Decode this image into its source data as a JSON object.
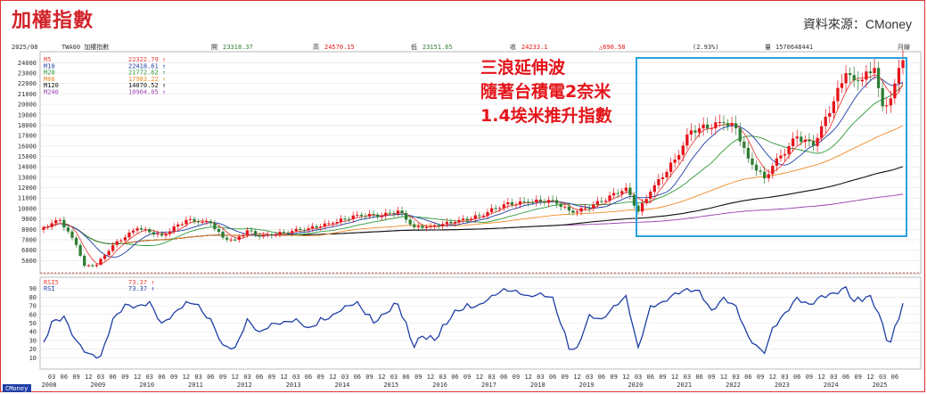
{
  "title": "加權指數",
  "source": "資料來源：CMoney",
  "header": {
    "date": "2025/08",
    "code": "TWA00 加權指數",
    "open_label": "開",
    "open": "23318.37",
    "high_label": "高",
    "high": "24570.15",
    "low_label": "低",
    "low": "23151.65",
    "close_label": "收",
    "close": "24233.1",
    "change": "△690.58",
    "pct": "(2.93%)",
    "vol_label": "量",
    "vol": "1570648441",
    "period": "月線"
  },
  "legend": [
    {
      "name": "M5",
      "value": "22322.79 ↑",
      "color": "#e8413a"
    },
    {
      "name": "M10",
      "value": "22418.61 ↑",
      "color": "#1f3fa6"
    },
    {
      "name": "M20",
      "value": "21772.62 ↑",
      "color": "#2e9a3a"
    },
    {
      "name": "M60",
      "value": "17982.22 ↑",
      "color": "#ef8a25"
    },
    {
      "name": "M120",
      "value": "14070.52 ↑",
      "color": "#111111"
    },
    {
      "name": "M240",
      "value": "10904.05 ↑",
      "color": "#9a3fb0"
    }
  ],
  "rsi_legend": [
    {
      "name": "RSI5",
      "value": "73.37 ↑",
      "color": "#e8413a"
    },
    {
      "name": "RSI",
      "value": "73.37 ↑",
      "color": "#1f3fa6"
    }
  ],
  "annotation": [
    "三浪延伸波",
    "隨著台積電2奈米",
    "1.4埃米推升指數"
  ],
  "watermark": "CMoney",
  "colors": {
    "up": "#e4141a",
    "down": "#2e7d32",
    "highlight_box": "#29a3e0",
    "frame": "#d33333"
  },
  "chart_data": [
    {
      "type": "candlestick",
      "title": "加權指數",
      "period": "monthly",
      "ylim": [
        4000,
        24800
      ],
      "yticks": [
        5000,
        6000,
        7000,
        8000,
        9000,
        10000,
        11000,
        12000,
        13000,
        14000,
        15000,
        16000,
        17000,
        18000,
        19000,
        20000,
        21000,
        22000,
        23000,
        24000
      ],
      "x_years": [
        "2008",
        "2009",
        "2010",
        "2011",
        "2012",
        "2013",
        "2014",
        "2015",
        "2016",
        "2017",
        "2018",
        "2019",
        "2020",
        "2021",
        "2022",
        "2023",
        "2024",
        "2025"
      ],
      "x_months": [
        "03",
        "06",
        "09",
        "12"
      ],
      "close_waypoints": [
        [
          "2008-01",
          8200
        ],
        [
          "2008-05",
          8900
        ],
        [
          "2008-09",
          6500
        ],
        [
          "2008-11",
          4500
        ],
        [
          "2009-02",
          4600
        ],
        [
          "2009-06",
          6500
        ],
        [
          "2009-12",
          8100
        ],
        [
          "2010-06",
          7400
        ],
        [
          "2010-12",
          8900
        ],
        [
          "2011-03",
          8700
        ],
        [
          "2011-06",
          8600
        ],
        [
          "2011-09",
          7200
        ],
        [
          "2011-12",
          7000
        ],
        [
          "2012-03",
          7900
        ],
        [
          "2012-06",
          7300
        ],
        [
          "2012-12",
          7700
        ],
        [
          "2013-06",
          8100
        ],
        [
          "2013-12",
          8600
        ],
        [
          "2014-06",
          9400
        ],
        [
          "2014-12",
          9300
        ],
        [
          "2015-04",
          9800
        ],
        [
          "2015-08",
          8200
        ],
        [
          "2015-12",
          8300
        ],
        [
          "2016-06",
          8700
        ],
        [
          "2016-12",
          9300
        ],
        [
          "2017-06",
          10400
        ],
        [
          "2017-12",
          10600
        ],
        [
          "2018-06",
          10800
        ],
        [
          "2018-10",
          9800
        ],
        [
          "2018-12",
          9700
        ],
        [
          "2019-06",
          10700
        ],
        [
          "2019-12",
          12000
        ],
        [
          "2020-03",
          9700
        ],
        [
          "2020-06",
          11600
        ],
        [
          "2020-12",
          14700
        ],
        [
          "2021-04",
          17500
        ],
        [
          "2021-06",
          17700
        ],
        [
          "2021-12",
          18200
        ],
        [
          "2022-03",
          17700
        ],
        [
          "2022-06",
          14800
        ],
        [
          "2022-10",
          12900
        ],
        [
          "2022-12",
          14100
        ],
        [
          "2023-06",
          16900
        ],
        [
          "2023-10",
          16000
        ],
        [
          "2023-12",
          17900
        ],
        [
          "2024-03",
          20300
        ],
        [
          "2024-06",
          23000
        ],
        [
          "2024-08",
          22300
        ],
        [
          "2024-12",
          23000
        ],
        [
          "2025-01",
          23500
        ],
        [
          "2025-03",
          19800
        ],
        [
          "2025-04",
          19900
        ],
        [
          "2025-06",
          22000
        ],
        [
          "2025-08",
          24233
        ]
      ],
      "moving_averages": {
        "M5": [
          22322.79
        ],
        "M10": [
          22418.61
        ],
        "M20": [
          21772.62
        ],
        "M60": [
          17982.22
        ],
        "M120": [
          14070.52
        ],
        "M240": [
          10904.05
        ]
      }
    },
    {
      "type": "line",
      "title": "RSI",
      "ylim": [
        0,
        100
      ],
      "yticks": [
        10,
        20,
        30,
        40,
        50,
        60,
        70,
        80,
        90
      ],
      "series": [
        {
          "name": "RSI",
          "last": 73.37
        }
      ],
      "waypoints": [
        [
          "2008-01",
          28
        ],
        [
          "2008-03",
          52
        ],
        [
          "2008-06",
          58
        ],
        [
          "2008-09",
          30
        ],
        [
          "2008-12",
          15
        ],
        [
          "2009-03",
          12
        ],
        [
          "2009-06",
          55
        ],
        [
          "2009-09",
          72
        ],
        [
          "2009-12",
          70
        ],
        [
          "2010-03",
          75
        ],
        [
          "2010-06",
          50
        ],
        [
          "2010-09",
          62
        ],
        [
          "2010-12",
          75
        ],
        [
          "2011-02",
          72
        ],
        [
          "2011-06",
          55
        ],
        [
          "2011-09",
          25
        ],
        [
          "2011-12",
          22
        ],
        [
          "2012-03",
          55
        ],
        [
          "2012-06",
          40
        ],
        [
          "2012-09",
          50
        ],
        [
          "2012-12",
          52
        ],
        [
          "2013-03",
          55
        ],
        [
          "2013-06",
          45
        ],
        [
          "2013-12",
          60
        ],
        [
          "2014-03",
          70
        ],
        [
          "2014-06",
          75
        ],
        [
          "2014-10",
          50
        ],
        [
          "2014-12",
          60
        ],
        [
          "2015-04",
          72
        ],
        [
          "2015-08",
          22
        ],
        [
          "2015-10",
          35
        ],
        [
          "2016-01",
          30
        ],
        [
          "2016-06",
          65
        ],
        [
          "2016-12",
          72
        ],
        [
          "2017-03",
          82
        ],
        [
          "2017-06",
          90
        ],
        [
          "2017-09",
          88
        ],
        [
          "2017-12",
          82
        ],
        [
          "2018-03",
          85
        ],
        [
          "2018-06",
          80
        ],
        [
          "2018-10",
          20
        ],
        [
          "2018-12",
          22
        ],
        [
          "2019-03",
          60
        ],
        [
          "2019-06",
          55
        ],
        [
          "2019-09",
          70
        ],
        [
          "2019-12",
          82
        ],
        [
          "2020-03",
          22
        ],
        [
          "2020-06",
          70
        ],
        [
          "2020-09",
          75
        ],
        [
          "2020-12",
          85
        ],
        [
          "2021-03",
          90
        ],
        [
          "2021-06",
          88
        ],
        [
          "2021-09",
          65
        ],
        [
          "2021-12",
          80
        ],
        [
          "2022-03",
          70
        ],
        [
          "2022-06",
          35
        ],
        [
          "2022-09",
          20
        ],
        [
          "2022-10",
          15
        ],
        [
          "2022-12",
          45
        ],
        [
          "2023-03",
          62
        ],
        [
          "2023-06",
          80
        ],
        [
          "2023-09",
          72
        ],
        [
          "2023-12",
          82
        ],
        [
          "2024-03",
          85
        ],
        [
          "2024-06",
          92
        ],
        [
          "2024-08",
          75
        ],
        [
          "2024-12",
          82
        ],
        [
          "2025-02",
          62
        ],
        [
          "2025-04",
          30
        ],
        [
          "2025-05",
          28
        ],
        [
          "2025-08",
          73
        ]
      ]
    }
  ]
}
